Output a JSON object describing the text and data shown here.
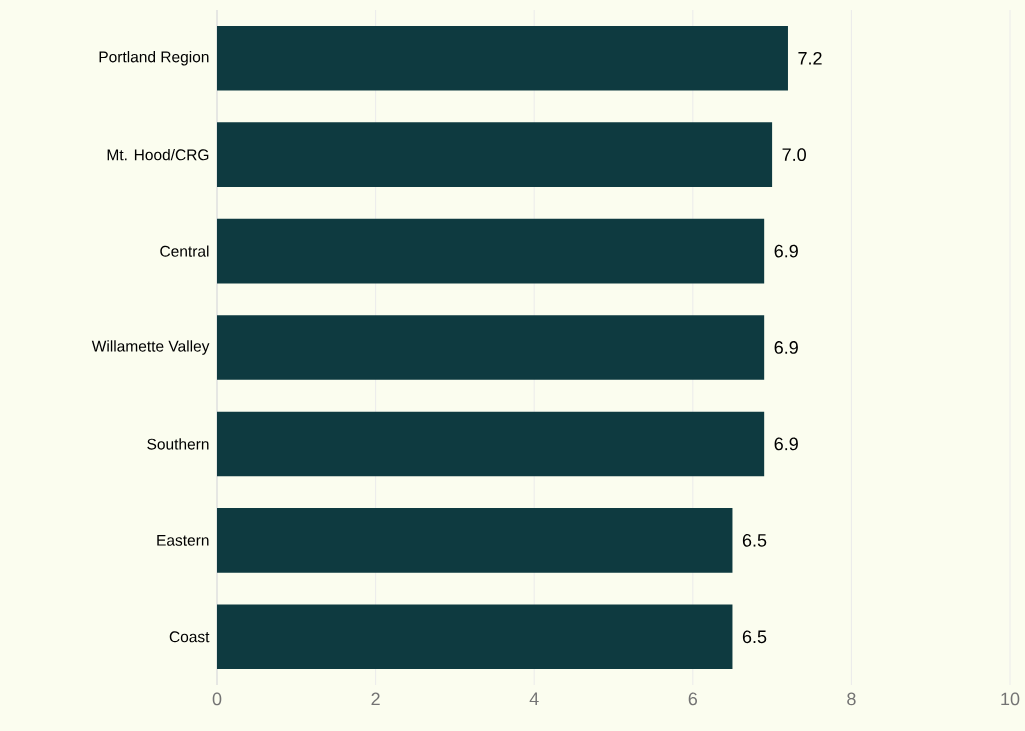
{
  "chart_data": {
    "type": "bar",
    "orientation": "horizontal",
    "categories": [
      "Portland Region",
      "Mt. Hood/CRG",
      "Central",
      "Willamette Valley",
      "Southern",
      "Eastern",
      "Coast"
    ],
    "values": [
      7.2,
      7.0,
      6.9,
      6.9,
      6.9,
      6.5,
      6.5
    ],
    "value_labels": [
      "7.2",
      "7.0",
      "6.9",
      "6.9",
      "6.9",
      "6.5",
      "6.5"
    ],
    "color": "#0e3a40",
    "xlim": [
      0,
      10
    ],
    "xticks": [
      0,
      2,
      4,
      6,
      8,
      10
    ],
    "grid": "x"
  }
}
